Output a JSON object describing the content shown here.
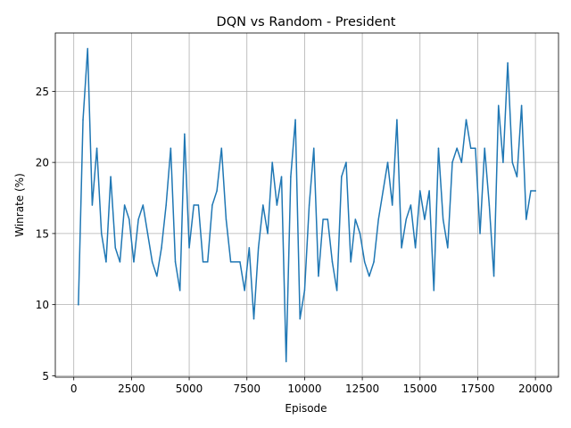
{
  "chart_data": {
    "type": "line",
    "title": "DQN vs Random - President",
    "xlabel": "Episode",
    "ylabel": "Winrate (%)",
    "xlim": [
      -800,
      21000
    ],
    "ylim": [
      4.9,
      29.1
    ],
    "xticks": [
      0,
      2500,
      5000,
      7500,
      10000,
      12500,
      15000,
      17500,
      20000
    ],
    "xtick_labels": [
      "0",
      "2500",
      "5000",
      "7500",
      "10000",
      "12500",
      "15000",
      "17500",
      "20000"
    ],
    "yticks": [
      5,
      10,
      15,
      20,
      25
    ],
    "ytick_labels": [
      "5",
      "10",
      "15",
      "20",
      "25"
    ],
    "grid": true,
    "line_color": "#1f77b4",
    "series": [
      {
        "x": [
          200,
          400,
          600,
          800,
          1000,
          1200,
          1400,
          1600,
          1800,
          2000,
          2200,
          2400,
          2600,
          2800,
          3000,
          3200,
          3400,
          3600,
          3800,
          4000,
          4200,
          4400,
          4600,
          4800,
          5000,
          5200,
          5400,
          5600,
          5800,
          6000,
          6200,
          6400,
          6600,
          6800,
          7000,
          7200,
          7400,
          7600,
          7800,
          8000,
          8200,
          8400,
          8600,
          8800,
          9000,
          9200,
          9400,
          9600,
          9800,
          10000,
          10200,
          10400,
          10600,
          10800,
          11000,
          11200,
          11400,
          11600,
          11800,
          12000,
          12200,
          12400,
          12600,
          12800,
          13000,
          13200,
          13400,
          13600,
          13800,
          14000,
          14200,
          14400,
          14600,
          14800,
          15000,
          15200,
          15400,
          15600,
          15800,
          16000,
          16200,
          16400,
          16600,
          16800,
          17000,
          17200,
          17400,
          17600,
          17800,
          18000,
          18200,
          18400,
          18600,
          18800,
          19000,
          19200,
          19400,
          19600,
          19800,
          20000
        ],
        "y": [
          10,
          23,
          28,
          17,
          21,
          15,
          13,
          19,
          14,
          13,
          17,
          16,
          13,
          16,
          17,
          15,
          13,
          12,
          14,
          17,
          21,
          13,
          11,
          22,
          14,
          17,
          17,
          13,
          13,
          17,
          18,
          21,
          16,
          13,
          13,
          13,
          11,
          14,
          9,
          14,
          17,
          15,
          20,
          17,
          19,
          6,
          19,
          23,
          9,
          11,
          17,
          21,
          12,
          16,
          16,
          13,
          11,
          19,
          20,
          13,
          16,
          15,
          13,
          12,
          13,
          16,
          18,
          20,
          17,
          23,
          14,
          16,
          17,
          14,
          18,
          16,
          18,
          11,
          21,
          16,
          14,
          20,
          21,
          20,
          23,
          21,
          21,
          15,
          21,
          17,
          12,
          24,
          20,
          27,
          20,
          19,
          24,
          16,
          18,
          18
        ]
      }
    ]
  }
}
